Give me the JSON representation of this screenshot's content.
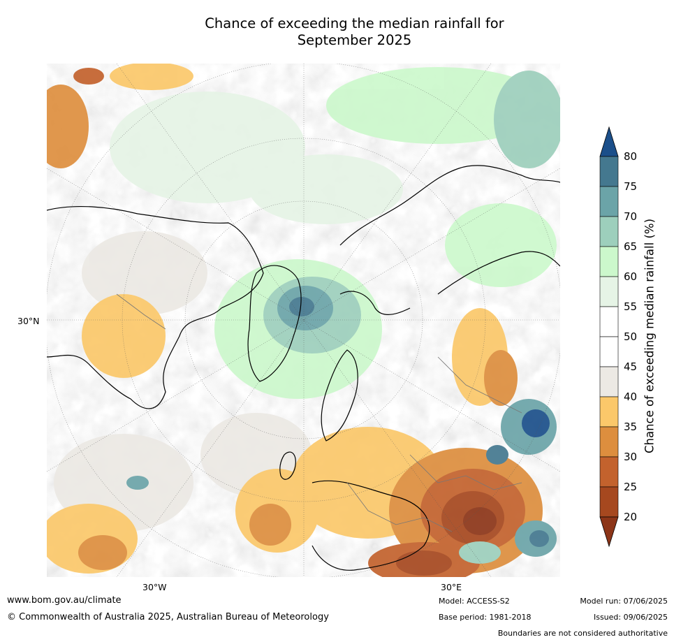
{
  "title": "Chance of exceeding the median rainfall for\nSeptember 2025",
  "map": {
    "lat_label": "30°N",
    "lon_labels": [
      "30°W",
      "30°E"
    ]
  },
  "colorbar": {
    "label": "Chance of exceeding median rainfall (%)",
    "ticks": [
      "80",
      "75",
      "70",
      "65",
      "60",
      "55",
      "50",
      "45",
      "40",
      "35",
      "30",
      "25",
      "20"
    ],
    "colors": {
      "above_80": "#1b4f8a",
      "75_80": "#44788f",
      "70_75": "#6ba4a8",
      "65_70": "#9dcfbc",
      "60_65": "#ccf8cc",
      "55_60": "#e6f4e6",
      "50_55": "#ffffff",
      "45_50": "#ffffff",
      "40_45": "#ece9e4",
      "35_40": "#fbc86a",
      "30_35": "#dd8e3e",
      "25_30": "#c3622d",
      "20_25": "#a6481f",
      "below_20": "#8c3518"
    }
  },
  "footer": {
    "website": "www.bom.gov.au/climate",
    "copyright": "© Commonwealth of Australia 2025, Australian Bureau of Meteorology",
    "model": "Model: ACCESS-S2",
    "base_period": "Base period: 1981-2018",
    "model_run": "Model run: 07/06/2025",
    "issued": "Issued: 09/06/2025",
    "disclaimer": "Boundaries are not considered authoritative"
  }
}
